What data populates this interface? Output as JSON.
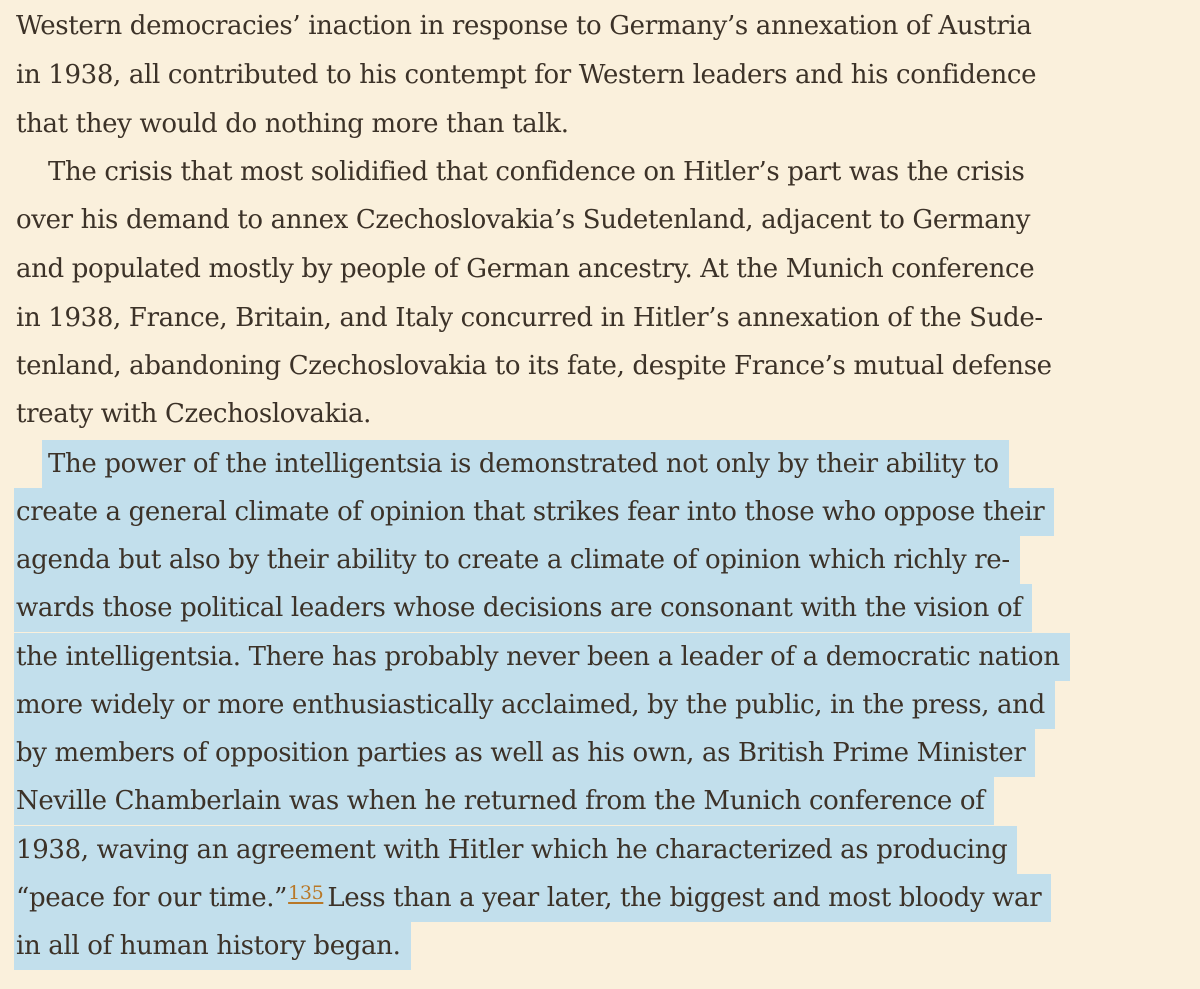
{
  "paragraph_1": {
    "lines": [
      "Western democracies’ inaction in response to Germany’s annexation of Austria",
      "in 1938, all contributed to his contempt for Western leaders and his confidence",
      "that they would do nothing more than talk."
    ]
  },
  "paragraph_2": {
    "lines": [
      "The crisis that most solidified that confidence on Hitler’s part was the crisis",
      "over his demand to annex Czechoslovakia’s Sudetenland, adjacent to Germany",
      "and populated mostly by people of German ancestry. At the Munich conference",
      "in 1938, France, Britain, and Italy concurred in Hitler’s annexation of the Sude-",
      "tenland, abandoning Czechoslovakia to its fate, despite France’s mutual defense",
      "treaty with Czechoslovakia."
    ]
  },
  "paragraph_3": {
    "highlight_color": "#c2dfec",
    "lines": [
      "The power of the intelligentsia is demonstrated not only by their ability to",
      "create a general climate of opinion that strikes fear into those who oppose their",
      "agenda but also by their ability to create a climate of opinion which richly re-",
      "wards those political leaders whose decisions are consonant with the vision of",
      "the intelligentsia. There has probably never been a leader of a democratic nation",
      "more widely or more enthusiastically acclaimed, by the public, in the press, and",
      "by members of opposition parties as well as his own, as British Prime Minister",
      "Neville Chamberlain was when he returned from the Munich conference of",
      "1938, waving an agreement with Hitler which he characterized as producing"
    ],
    "footnote_line": {
      "before": "“peace for our time.”",
      "footnote_ref": "135",
      "after": "Less than a year later, the biggest and most bloody war"
    },
    "last_line": "in all of human history began."
  }
}
